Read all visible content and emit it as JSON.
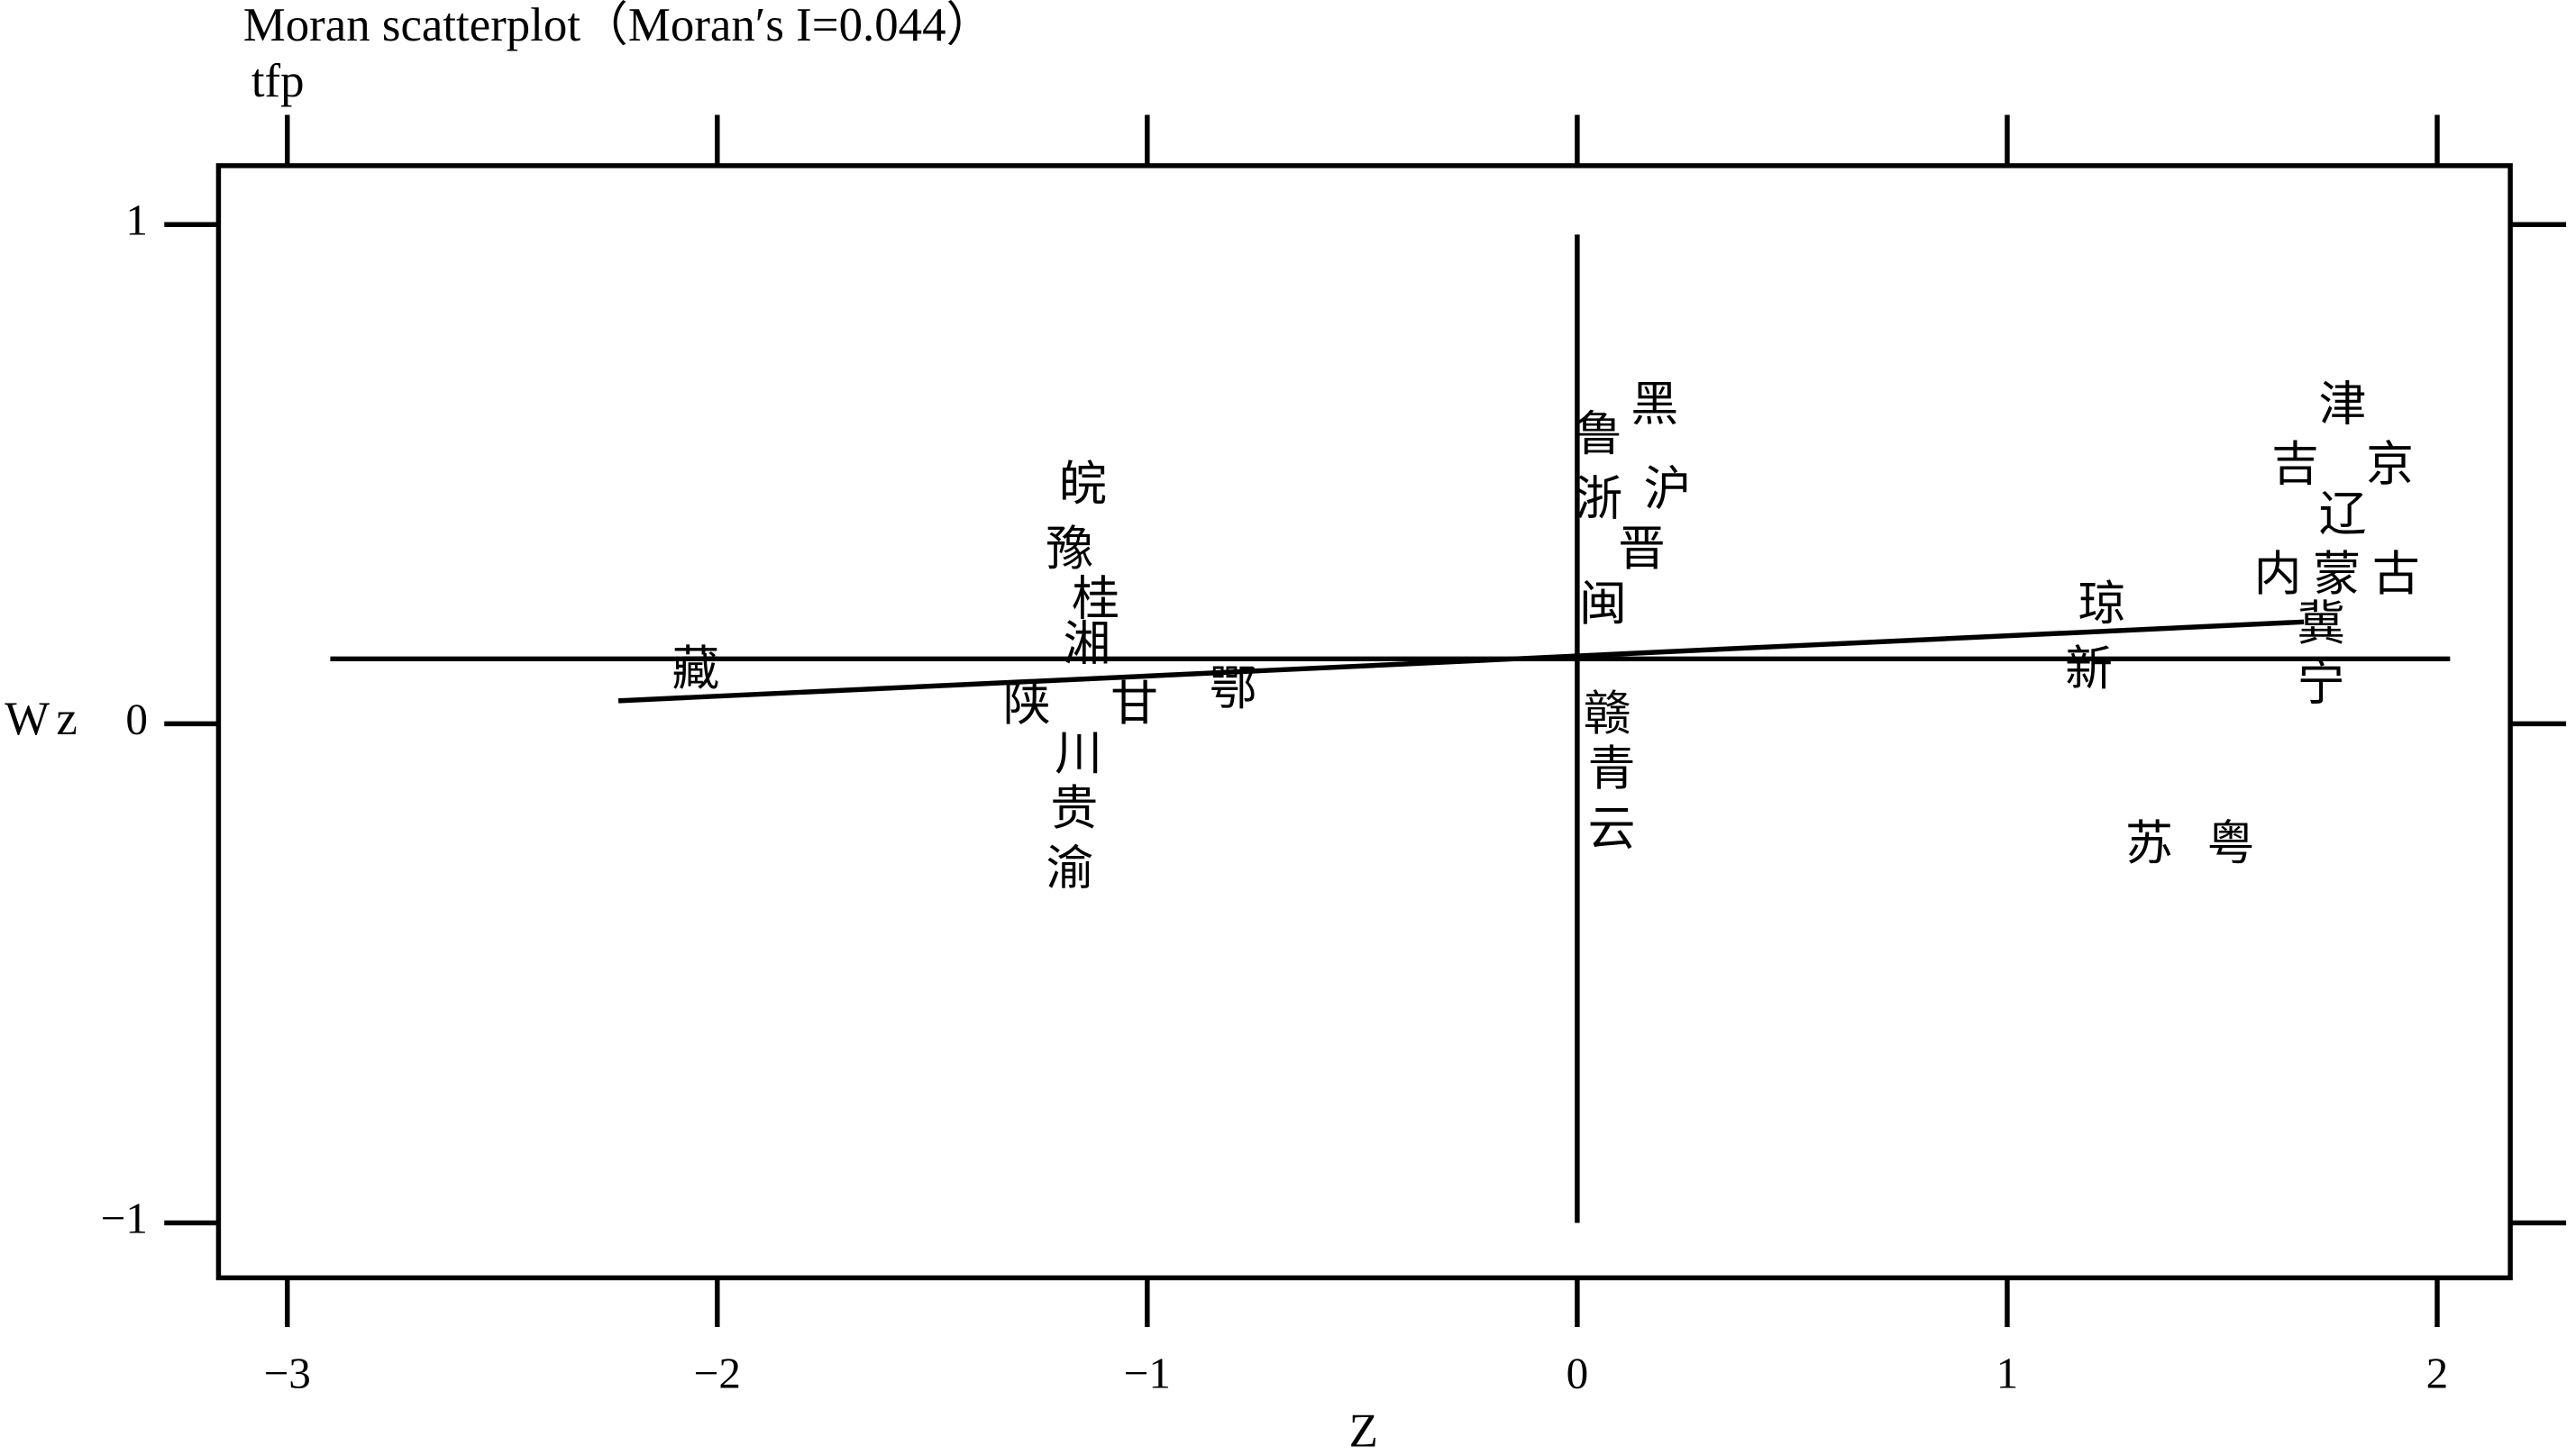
{
  "chart_data": {
    "type": "scatter",
    "title": "Moran scatterplot（Moran′s I=0.044）",
    "subtitle": "tfp",
    "x_label": "Z",
    "y_label": "Wz",
    "xlim": [
      -3.16,
      2.17
    ],
    "ylim": [
      -1.11,
      1.118
    ],
    "xticks": [
      {
        "value": -3,
        "label": "−3"
      },
      {
        "value": -2,
        "label": "−2"
      },
      {
        "value": -1,
        "label": "−1"
      },
      0,
      1,
      2
    ],
    "yticks": [
      {
        "value": -1,
        "label": "−1"
      },
      0,
      1
    ],
    "color": "#000000",
    "points": {
      "labels": [
        "藏",
        "皖",
        "豫",
        "桂",
        "湘",
        "陕",
        "甘",
        "鄂",
        "川",
        "贵",
        "渝",
        "黑",
        "鲁",
        "沪",
        "浙",
        "晋",
        "闽",
        "赣",
        "青",
        "云",
        "琼",
        "新",
        "苏",
        "粤",
        "津",
        "吉",
        "京",
        "辽",
        "内蒙古",
        "冀",
        "宁"
      ],
      "x": [
        -2.05,
        -1.15,
        -1.18,
        -1.12,
        -1.14,
        -1.28,
        -1.03,
        -0.8,
        -1.16,
        -1.17,
        -1.18,
        0.18,
        0.05,
        0.21,
        0.05,
        0.15,
        0.06,
        0.07,
        0.08,
        0.08,
        1.22,
        1.19,
        1.33,
        1.52,
        1.78,
        1.67,
        1.89,
        1.78,
        1.78,
        1.73,
        1.73
      ],
      "y": [
        0.1,
        0.47,
        0.34,
        0.24,
        0.15,
        0.03,
        0.03,
        0.06,
        -0.07,
        -0.18,
        -0.3,
        0.63,
        0.57,
        0.46,
        0.44,
        0.34,
        0.23,
        0.01,
        -0.1,
        -0.22,
        0.23,
        0.1,
        -0.25,
        -0.25,
        0.63,
        0.51,
        0.51,
        0.41,
        0.29,
        0.19,
        0.07
      ]
    },
    "fit_line": {
      "x": [
        -2.23,
        1.69
      ],
      "y": [
        0.046,
        0.204
      ]
    },
    "hline": {
      "y": 0.13,
      "xlim": [
        -2.9,
        2.03
      ]
    },
    "vline": {
      "x": 0,
      "ylim": [
        -1,
        0.98
      ]
    }
  }
}
